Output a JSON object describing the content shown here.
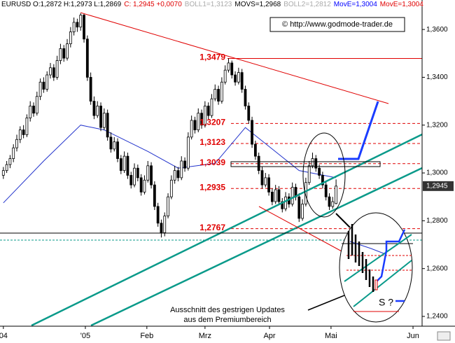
{
  "chart_data": {
    "type": "candlestick",
    "header": [
      {
        "text": "EURUSD O:1,2872 H:1,2973 L:1,2869",
        "color": "#000000"
      },
      {
        "text": "C: 1,2945 +0,0070",
        "color": "#e00000"
      },
      {
        "text": "BOLL1=1,3123",
        "color": "#aaaaaa"
      },
      {
        "text": "MOVS=1,2968",
        "color": "#000000"
      },
      {
        "text": "BOLL2=1,2812",
        "color": "#aaaaaa"
      },
      {
        "text": "MovE=1,3004",
        "color": "#0000ff"
      },
      {
        "text": "MovE=1,3004",
        "color": "#e00000"
      }
    ],
    "watermark": "© http://www.godmode-trader.de",
    "annotation": [
      "Ausschnitt des gestrigen Updates",
      "aus dem Premiumbereich"
    ],
    "inset_label": "S ?",
    "ylim": [
      1.2362,
      1.3694
    ],
    "yticks": [
      {
        "value": 1.36,
        "label": "1,3600"
      },
      {
        "value": 1.34,
        "label": "1,3400"
      },
      {
        "value": 1.32,
        "label": "1,3200"
      },
      {
        "value": 1.3,
        "label": "1,3000"
      },
      {
        "value": 1.28,
        "label": "1,2800"
      },
      {
        "value": 1.26,
        "label": "1,2600"
      },
      {
        "value": 1.24,
        "label": "1,2400"
      }
    ],
    "xlim": [
      -1,
      124.6
    ],
    "xticks": [
      {
        "value": 0,
        "label": "04"
      },
      {
        "value": 24.4,
        "label": "'05"
      },
      {
        "value": 42.7,
        "label": "Feb"
      },
      {
        "value": 60,
        "label": "Mrz"
      },
      {
        "value": 79.2,
        "label": "Apr"
      },
      {
        "value": 97.5,
        "label": "Mai"
      },
      {
        "value": 121.9,
        "label": "Jun"
      }
    ],
    "last_price": {
      "value": 1.2945,
      "label": "1,2945"
    },
    "levels": [
      {
        "value": 1.3479,
        "label": "1,3479"
      },
      {
        "value": 1.3207,
        "label": "1,3207"
      },
      {
        "value": 1.3123,
        "label": "1,3123"
      },
      {
        "value": 1.3039,
        "label": "1,3039"
      },
      {
        "value": 1.2935,
        "label": "1,2935"
      },
      {
        "value": 1.2767,
        "label": "1,2767"
      }
    ],
    "level_color": "#e00000",
    "moving_average": {
      "color": "#2233cc",
      "x": [
        0,
        12,
        23,
        30,
        43,
        52,
        63,
        72,
        80,
        88,
        99
      ],
      "values": [
        1.2875,
        1.305,
        1.32,
        1.318,
        1.309,
        1.302,
        1.304,
        1.319,
        1.31,
        1.301,
        1.298
      ]
    },
    "candles": [
      [
        1.299,
        1.3025,
        1.2975,
        1.301
      ],
      [
        1.301,
        1.305,
        1.3,
        1.3035
      ],
      [
        1.3035,
        1.3075,
        1.302,
        1.306
      ],
      [
        1.306,
        1.312,
        1.3045,
        1.3105
      ],
      [
        1.3105,
        1.316,
        1.309,
        1.314
      ],
      [
        1.314,
        1.3195,
        1.3125,
        1.318
      ],
      [
        1.318,
        1.32,
        1.3145,
        1.316
      ],
      [
        1.316,
        1.3245,
        1.315,
        1.323
      ],
      [
        1.323,
        1.33,
        1.3215,
        1.328
      ],
      [
        1.328,
        1.3295,
        1.3235,
        1.325
      ],
      [
        1.325,
        1.334,
        1.324,
        1.332
      ],
      [
        1.332,
        1.3395,
        1.3305,
        1.338
      ],
      [
        1.338,
        1.34,
        1.3335,
        1.335
      ],
      [
        1.335,
        1.3425,
        1.334,
        1.341
      ],
      [
        1.341,
        1.346,
        1.3395,
        1.344
      ],
      [
        1.344,
        1.3455,
        1.3385,
        1.34
      ],
      [
        1.34,
        1.349,
        1.339,
        1.347
      ],
      [
        1.347,
        1.354,
        1.3455,
        1.352
      ],
      [
        1.352,
        1.3535,
        1.3465,
        1.348
      ],
      [
        1.348,
        1.356,
        1.347,
        1.354
      ],
      [
        1.354,
        1.361,
        1.3525,
        1.359
      ],
      [
        1.359,
        1.365,
        1.3575,
        1.363
      ],
      [
        1.363,
        1.3645,
        1.359,
        1.361
      ],
      [
        1.361,
        1.3668,
        1.3595,
        1.366
      ],
      [
        1.366,
        1.3665,
        1.3545,
        1.356
      ],
      [
        1.356,
        1.3575,
        1.3385,
        1.34
      ],
      [
        1.34,
        1.342,
        1.3285,
        1.33
      ],
      [
        1.33,
        1.332,
        1.3225,
        1.324
      ],
      [
        1.324,
        1.33,
        1.323,
        1.328
      ],
      [
        1.328,
        1.3295,
        1.3175,
        1.319
      ],
      [
        1.319,
        1.327,
        1.318,
        1.325
      ],
      [
        1.325,
        1.3265,
        1.3135,
        1.315
      ],
      [
        1.315,
        1.317,
        1.3085,
        1.31
      ],
      [
        1.31,
        1.315,
        1.309,
        1.313
      ],
      [
        1.313,
        1.3145,
        1.3045,
        1.306
      ],
      [
        1.306,
        1.3075,
        1.2995,
        1.301
      ],
      [
        1.301,
        1.309,
        1.3,
        1.307
      ],
      [
        1.307,
        1.3085,
        1.2975,
        1.299
      ],
      [
        1.299,
        1.3005,
        1.2935,
        1.295
      ],
      [
        1.295,
        1.304,
        1.294,
        1.302
      ],
      [
        1.302,
        1.3035,
        1.2965,
        1.298
      ],
      [
        1.298,
        1.2995,
        1.2905,
        1.292
      ],
      [
        1.292,
        1.299,
        1.291,
        1.297
      ],
      [
        1.297,
        1.305,
        1.296,
        1.303
      ],
      [
        1.303,
        1.3045,
        1.2935,
        1.295
      ],
      [
        1.295,
        1.2965,
        1.2845,
        1.286
      ],
      [
        1.286,
        1.2875,
        1.2775,
        1.279
      ],
      [
        1.279,
        1.2805,
        1.273,
        1.275
      ],
      [
        1.275,
        1.2835,
        1.2735,
        1.282
      ],
      [
        1.282,
        1.2915,
        1.281,
        1.29
      ],
      [
        1.29,
        1.299,
        1.289,
        1.297
      ],
      [
        1.297,
        1.303,
        1.2955,
        1.301
      ],
      [
        1.301,
        1.3025,
        1.2965,
        1.298
      ],
      [
        1.298,
        1.307,
        1.297,
        1.305
      ],
      [
        1.305,
        1.3065,
        1.3005,
        1.302
      ],
      [
        1.302,
        1.317,
        1.301,
        1.315
      ],
      [
        1.315,
        1.324,
        1.314,
        1.322
      ],
      [
        1.322,
        1.3235,
        1.3165,
        1.318
      ],
      [
        1.318,
        1.327,
        1.317,
        1.325
      ],
      [
        1.325,
        1.3265,
        1.3185,
        1.32
      ],
      [
        1.32,
        1.33,
        1.319,
        1.328
      ],
      [
        1.328,
        1.3295,
        1.3225,
        1.324
      ],
      [
        1.324,
        1.333,
        1.323,
        1.331
      ],
      [
        1.331,
        1.337,
        1.33,
        1.335
      ],
      [
        1.335,
        1.3365,
        1.3285,
        1.33
      ],
      [
        1.33,
        1.34,
        1.329,
        1.338
      ],
      [
        1.338,
        1.345,
        1.337,
        1.343
      ],
      [
        1.343,
        1.3479,
        1.342,
        1.346
      ],
      [
        1.346,
        1.347,
        1.3395,
        1.341
      ],
      [
        1.341,
        1.3425,
        1.3365,
        1.338
      ],
      [
        1.338,
        1.344,
        1.337,
        1.342
      ],
      [
        1.342,
        1.3435,
        1.3335,
        1.335
      ],
      [
        1.335,
        1.3365,
        1.3265,
        1.328
      ],
      [
        1.328,
        1.3295,
        1.3205,
        1.322
      ],
      [
        1.322,
        1.3235,
        1.3105,
        1.312
      ],
      [
        1.312,
        1.3135,
        1.3055,
        1.307
      ],
      [
        1.307,
        1.3085,
        1.2995,
        1.301
      ],
      [
        1.301,
        1.3025,
        1.2935,
        1.295
      ],
      [
        1.295,
        1.3,
        1.294,
        1.298
      ],
      [
        1.298,
        1.2995,
        1.2905,
        1.292
      ],
      [
        1.292,
        1.2935,
        1.2865,
        1.288
      ],
      [
        1.288,
        1.295,
        1.287,
        1.293
      ],
      [
        1.293,
        1.2945,
        1.2865,
        1.288
      ],
      [
        1.288,
        1.2895,
        1.2835,
        1.285
      ],
      [
        1.285,
        1.292,
        1.284,
        1.29
      ],
      [
        1.29,
        1.2915,
        1.2855,
        1.287
      ],
      [
        1.287,
        1.296,
        1.286,
        1.294
      ],
      [
        1.294,
        1.2955,
        1.2885,
        1.29
      ],
      [
        1.29,
        1.2915,
        1.2795,
        1.281
      ],
      [
        1.281,
        1.289,
        1.28,
        1.287
      ],
      [
        1.287,
        1.298,
        1.286,
        1.296
      ],
      [
        1.296,
        1.305,
        1.295,
        1.303
      ],
      [
        1.303,
        1.3085,
        1.302,
        1.306
      ],
      [
        1.306,
        1.3075,
        1.3005,
        1.302
      ],
      [
        1.302,
        1.3035,
        1.2975,
        1.299
      ],
      [
        1.299,
        1.3005,
        1.2935,
        1.295
      ],
      [
        1.295,
        1.2965,
        1.2885,
        1.29
      ],
      [
        1.29,
        1.2915,
        1.2845,
        1.286
      ],
      [
        1.286,
        1.29,
        1.285,
        1.288
      ],
      [
        1.2872,
        1.2973,
        1.2869,
        1.2945
      ]
    ]
  }
}
